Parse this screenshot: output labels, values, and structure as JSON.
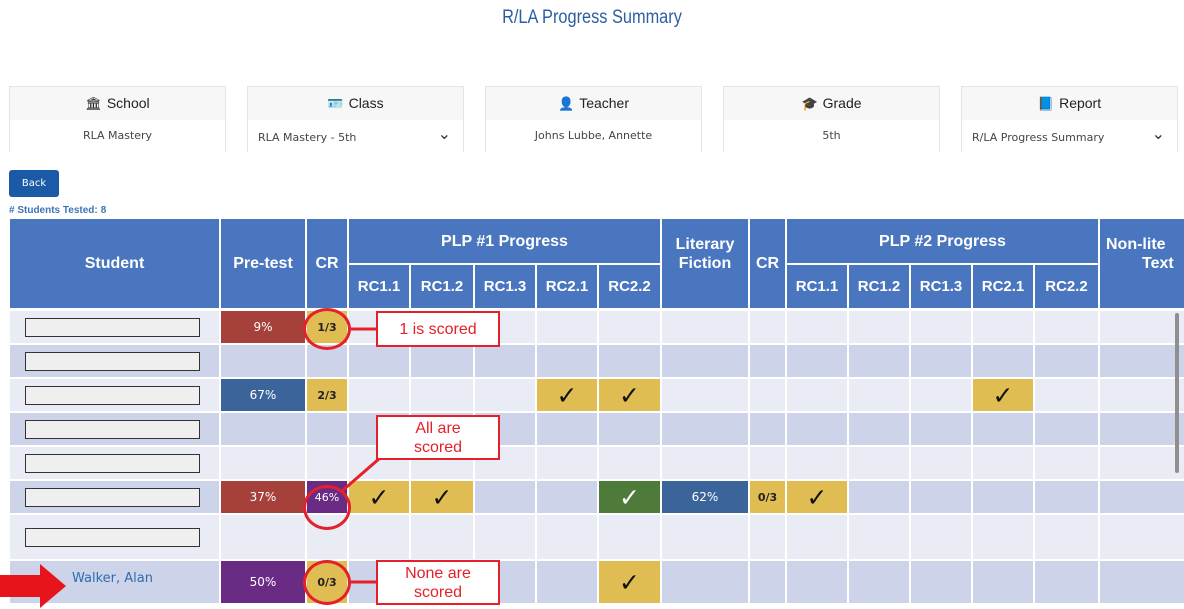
{
  "page": {
    "title": "R/LA Progress Summary"
  },
  "filters": [
    {
      "label": "School",
      "icon": "bank-icon",
      "glyph": "🏛",
      "value": "RLA Mastery",
      "dropdown": false
    },
    {
      "label": "Class",
      "icon": "id-card-icon",
      "glyph": "🪪",
      "value": "RLA Mastery - 5th",
      "dropdown": true
    },
    {
      "label": "Teacher",
      "icon": "user-icon",
      "glyph": "👤",
      "value": "Johns Lubbe, Annette",
      "dropdown": false
    },
    {
      "label": "Grade",
      "icon": "graduation-cap-icon",
      "glyph": "🎓",
      "value": "5th",
      "dropdown": false
    },
    {
      "label": "Report",
      "icon": "book-icon",
      "glyph": "📘",
      "value": "R/LA Progress Summary",
      "dropdown": true
    }
  ],
  "back_button": {
    "label": "Back"
  },
  "students_tested": {
    "label": "# Students Tested:",
    "count": "8"
  },
  "table": {
    "headers": {
      "student": "Student",
      "pretest": "Pre-test",
      "cr": "CR",
      "plp1": "PLP #1 Progress",
      "literary_line1": "Literary",
      "literary_line2": "Fiction",
      "cr2": "CR",
      "plp2": "PLP #2 Progress",
      "nonlit_line1": "Non-lite",
      "nonlit_line2": "Text",
      "rc": [
        "RC1.1",
        "RC1.2",
        "RC1.3",
        "RC2.1",
        "RC2.2"
      ]
    },
    "rows": [
      {
        "student": "",
        "pretest": "9%",
        "pretest_color": "#a6403a",
        "cr": "1/3",
        "cr_color": "#dfbd52"
      },
      {
        "student": ""
      },
      {
        "student": "",
        "pretest": "67%",
        "pretest_color": "#3b659a",
        "cr": "2/3",
        "cr_color": "#dfbd52"
      },
      {
        "student": ""
      },
      {
        "student": ""
      },
      {
        "student": "",
        "pretest": "37%",
        "pretest_color": "#a6403a",
        "cr": "46%",
        "cr_color": "#6a2b84",
        "literary": "62%",
        "literary_color": "#3b659a",
        "cr2": "0/3",
        "cr2_color": "#dfbd52"
      },
      {
        "student": ""
      },
      {
        "student": "Walker, Alan",
        "pretest": "50%",
        "pretest_color": "#6a2b84",
        "cr": "0/3",
        "cr_color": "#dfbd52"
      }
    ],
    "checkmark": "✓"
  },
  "annotations": {
    "one_scored": "1 is scored",
    "all_scored_line1": "All are",
    "all_scored_line2": "scored",
    "none_scored_line1": "None are",
    "none_scored_line2": "scored"
  },
  "colors": {
    "header_blue": "#4a76bf",
    "row_light": "#e9ebf5",
    "row_dark": "#cdd4e9",
    "gold": "#dfbd52",
    "green": "#4e7a3a",
    "callout_red": "#e4202a"
  }
}
